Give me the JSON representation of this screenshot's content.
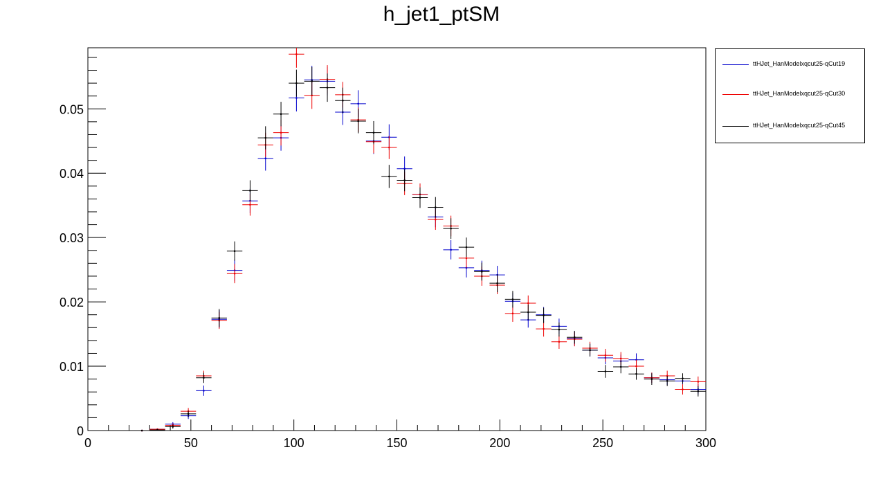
{
  "chart_data": {
    "type": "scatter",
    "title": "h_jet1_ptSM",
    "xlabel": "",
    "ylabel": "",
    "xlim": [
      0,
      300
    ],
    "ylim": [
      0,
      0.0595
    ],
    "bin_width": 7.5,
    "x_ticks": [
      0,
      50,
      100,
      150,
      200,
      250,
      300
    ],
    "x_tick_labels": [
      "0",
      "50",
      "100",
      "150",
      "200",
      "250",
      "300"
    ],
    "y_ticks": [
      0,
      0.01,
      0.02,
      0.03,
      0.04,
      0.05
    ],
    "y_tick_labels": [
      "0",
      "0.01",
      "0.02",
      "0.03",
      "0.04",
      "0.05"
    ],
    "grid": false,
    "legend_position": "top-right outside",
    "x": [
      26.25,
      33.75,
      41.25,
      48.75,
      56.25,
      63.75,
      71.25,
      78.75,
      86.25,
      93.75,
      101.25,
      108.75,
      116.25,
      123.75,
      131.25,
      138.75,
      146.25,
      153.75,
      161.25,
      168.75,
      176.25,
      183.75,
      191.25,
      198.75,
      206.25,
      213.75,
      221.25,
      228.75,
      236.25,
      243.75,
      251.25,
      258.75,
      266.25,
      273.75,
      281.25,
      288.75,
      296.25
    ],
    "series": [
      {
        "name": "ttHJet_HanModelxqcut25-qCut19",
        "color": "#0000cc",
        "values": [
          0.0,
          0.0002,
          0.001,
          0.0023,
          0.0062,
          0.0173,
          0.0249,
          0.0357,
          0.0423,
          0.0455,
          0.0517,
          0.0545,
          0.0543,
          0.0495,
          0.0508,
          0.045,
          0.0456,
          0.0407,
          0.0367,
          0.0332,
          0.0281,
          0.0253,
          0.0249,
          0.0242,
          0.0201,
          0.0172,
          0.018,
          0.0162,
          0.0143,
          0.0125,
          0.0113,
          0.0108,
          0.011,
          0.0082,
          0.0079,
          0.0077,
          0.0064
        ],
        "errors": [
          0.0,
          0.0001,
          0.0003,
          0.0005,
          0.0008,
          0.0014,
          0.0017,
          0.0019,
          0.0019,
          0.002,
          0.0021,
          0.0022,
          0.0022,
          0.002,
          0.0021,
          0.002,
          0.002,
          0.0019,
          0.0017,
          0.0016,
          0.0015,
          0.0015,
          0.0015,
          0.0014,
          0.0013,
          0.0012,
          0.0012,
          0.0012,
          0.0011,
          0.001,
          0.001,
          0.001,
          0.001,
          0.0008,
          0.0008,
          0.0008,
          0.0008
        ]
      },
      {
        "name": "ttHJet_HanModelxqcut25-qCut30",
        "color": "#ee0000",
        "values": [
          0.0,
          0.0002,
          0.0008,
          0.003,
          0.0085,
          0.0171,
          0.0244,
          0.0351,
          0.0444,
          0.0463,
          0.0585,
          0.0521,
          0.0546,
          0.0522,
          0.0483,
          0.0449,
          0.044,
          0.0384,
          0.0367,
          0.0328,
          0.0318,
          0.0268,
          0.024,
          0.0226,
          0.0182,
          0.0198,
          0.0158,
          0.0138,
          0.0142,
          0.0128,
          0.0117,
          0.0112,
          0.01,
          0.0082,
          0.0085,
          0.0064,
          0.0076
        ],
        "errors": [
          0.0,
          0.0001,
          0.0003,
          0.0005,
          0.0008,
          0.0013,
          0.0015,
          0.0017,
          0.0019,
          0.002,
          0.0021,
          0.0021,
          0.0022,
          0.002,
          0.0019,
          0.0018,
          0.0018,
          0.0018,
          0.0017,
          0.0016,
          0.0016,
          0.0015,
          0.0015,
          0.0014,
          0.0013,
          0.0012,
          0.0012,
          0.0011,
          0.0011,
          0.001,
          0.001,
          0.001,
          0.001,
          0.0008,
          0.0008,
          0.0008,
          0.0008
        ]
      },
      {
        "name": "ttHJet_HanModelxqcut25-qCut45",
        "color": "#000000",
        "values": [
          0.0,
          0.0001,
          0.0006,
          0.0026,
          0.0082,
          0.0175,
          0.0279,
          0.0373,
          0.0455,
          0.0492,
          0.054,
          0.0543,
          0.0533,
          0.0513,
          0.0481,
          0.0463,
          0.0395,
          0.0389,
          0.0362,
          0.0347,
          0.0314,
          0.0285,
          0.0247,
          0.0229,
          0.0204,
          0.0184,
          0.0179,
          0.0157,
          0.0145,
          0.0125,
          0.0092,
          0.0099,
          0.0088,
          0.008,
          0.0077,
          0.0081,
          0.0061
        ],
        "errors": [
          0.0,
          0.0001,
          0.0003,
          0.0005,
          0.0008,
          0.0014,
          0.0015,
          0.0016,
          0.0018,
          0.0019,
          0.0021,
          0.0022,
          0.0022,
          0.002,
          0.0019,
          0.0018,
          0.0018,
          0.0017,
          0.0016,
          0.0016,
          0.0016,
          0.0015,
          0.0014,
          0.0014,
          0.0013,
          0.0012,
          0.0012,
          0.0011,
          0.001,
          0.001,
          0.001,
          0.001,
          0.0009,
          0.0009,
          0.0008,
          0.0008,
          0.0008
        ]
      }
    ]
  }
}
